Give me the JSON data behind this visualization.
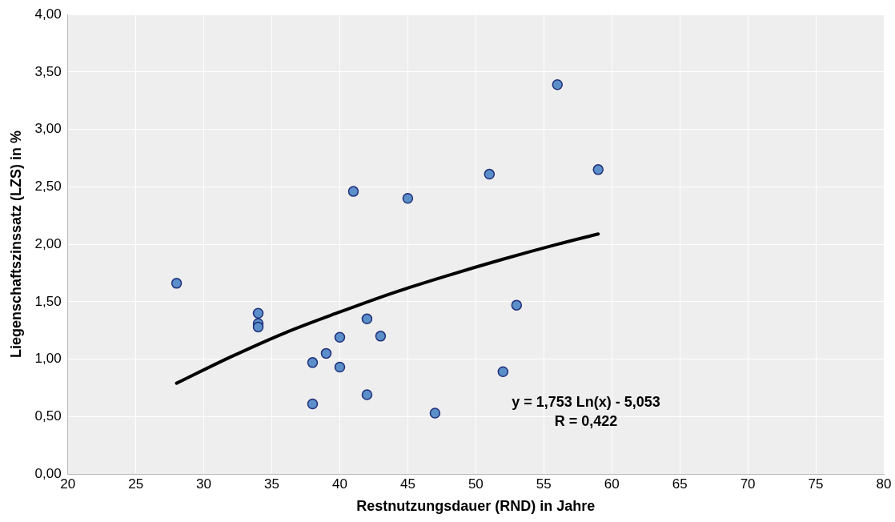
{
  "chart_data": {
    "type": "scatter",
    "xlabel": "Restnutzungsdauer (RND) in Jahre",
    "ylabel": "Liegenschaftszinssatz (LZS) in %",
    "x": [
      28,
      34,
      34,
      34,
      38,
      38,
      39,
      40,
      40,
      41,
      42,
      42,
      43,
      45,
      47,
      51,
      52,
      53,
      56,
      59
    ],
    "series": [
      {
        "color": "#5b8fc9",
        "values": [
          1.66,
          1.4,
          1.31,
          1.28,
          0.97,
          0.61,
          1.05,
          1.19,
          0.93,
          2.46,
          1.35,
          0.69,
          1.2,
          2.4,
          0.53,
          2.61,
          0.89,
          1.47,
          3.39,
          2.65
        ]
      },
      {
        "type": "line",
        "marker": "none",
        "color": "#000000",
        "x": [
          28,
          32,
          36,
          40,
          44,
          48,
          52,
          56,
          59
        ],
        "values": [
          0.79,
          1.02,
          1.23,
          1.41,
          1.58,
          1.73,
          1.87,
          2.0,
          2.09
        ]
      }
    ],
    "xlim": [
      20,
      80
    ],
    "xticks": [
      20,
      25,
      30,
      35,
      40,
      45,
      50,
      55,
      60,
      65,
      70,
      75,
      80
    ],
    "ylim": [
      0,
      4
    ],
    "yticks": [
      {
        "value": 0,
        "label": "0,00"
      },
      {
        "value": 0.5,
        "label": "0,50"
      },
      {
        "value": 1,
        "label": "1,00"
      },
      {
        "value": 1.5,
        "label": "1,50"
      },
      {
        "value": 2,
        "label": "2,00"
      },
      {
        "value": 2.5,
        "label": "2,50"
      },
      {
        "value": 3,
        "label": "3,00"
      },
      {
        "value": 3.5,
        "label": "3,50"
      },
      {
        "value": 4,
        "label": "4,00"
      }
    ],
    "annotations": [
      "y = 1,753 Ln(x) - 5,053",
      "R = 0,422"
    ],
    "grid": true,
    "legend": false,
    "marker": "circle"
  }
}
